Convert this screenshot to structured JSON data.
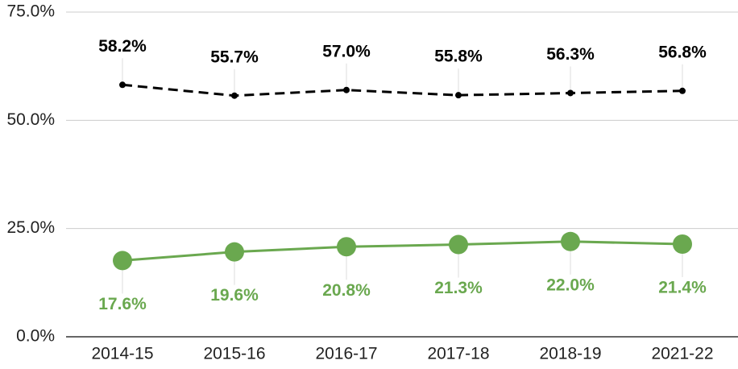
{
  "chart_data": {
    "type": "line",
    "categories": [
      "2014-15",
      "2015-16",
      "2016-17",
      "2017-18",
      "2018-19",
      "2021-22"
    ],
    "series": [
      {
        "color": "#000000",
        "dashed": true,
        "label_position": "above",
        "values": [
          58.2,
          55.7,
          57.0,
          55.8,
          56.3,
          56.8
        ],
        "value_labels": [
          "58.2%",
          "55.7%",
          "57.0%",
          "55.8%",
          "56.3%",
          "56.8%"
        ]
      },
      {
        "color": "#6aa84f",
        "dashed": false,
        "label_position": "below",
        "values": [
          17.6,
          19.6,
          20.8,
          21.3,
          22.0,
          21.4
        ],
        "value_labels": [
          "17.6%",
          "19.6%",
          "20.8%",
          "21.3%",
          "22.0%",
          "21.4%"
        ]
      }
    ],
    "ylim": [
      0,
      75
    ],
    "yticks": [
      {
        "value": 0,
        "label": "0.0%"
      },
      {
        "value": 25,
        "label": "25.0%"
      },
      {
        "value": 50,
        "label": "50.0%"
      },
      {
        "value": 75,
        "label": "75.0%"
      }
    ],
    "grid": true
  }
}
